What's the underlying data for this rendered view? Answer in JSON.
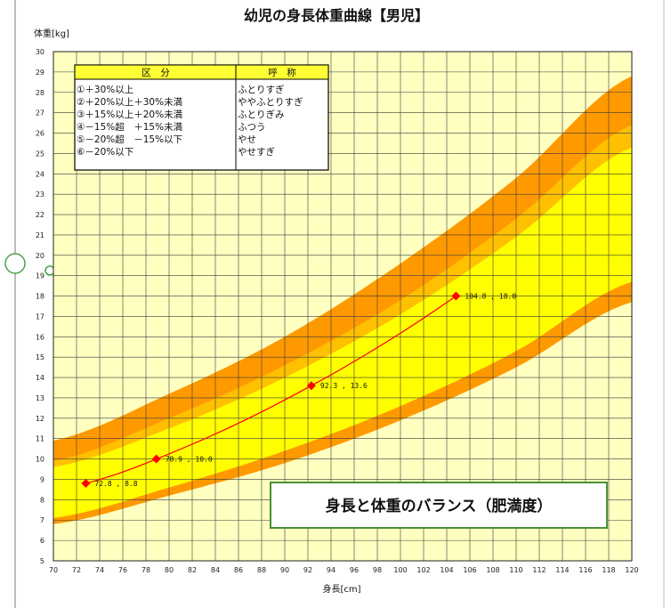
{
  "chart_data": {
    "type": "line",
    "title": "幼児の身長体重曲線【男児】",
    "xlabel": "身長[cm]",
    "ylabel": "体重[kg]",
    "xlim": [
      70,
      120
    ],
    "ylim": [
      5,
      30
    ],
    "x_ticks": [
      70,
      72,
      74,
      76,
      78,
      80,
      82,
      84,
      86,
      88,
      90,
      92,
      94,
      96,
      98,
      100,
      102,
      104,
      106,
      108,
      110,
      112,
      114,
      116,
      118,
      120
    ],
    "y_ticks": [
      5,
      6,
      7,
      8,
      9,
      10,
      11,
      12,
      13,
      14,
      15,
      16,
      17,
      18,
      19,
      20,
      21,
      22,
      23,
      24,
      25,
      26,
      27,
      28,
      29,
      30
    ],
    "grid": true,
    "series": [
      {
        "values": [
          {
            "x": 72.8,
            "y": 8.8,
            "label": "72.8 , 8.8"
          },
          {
            "x": 78.9,
            "y": 10.0,
            "label": "78.9 , 10.0"
          },
          {
            "x": 92.3,
            "y": 13.6,
            "label": "92.3 , 13.6"
          },
          {
            "x": 104.8,
            "y": 18.0,
            "label": "104.8 , 18.0"
          }
        ],
        "color": "#ff0000"
      }
    ],
    "bands": {
      "x": [
        70,
        80,
        90,
        100,
        110,
        120
      ],
      "upper30": [
        10.9,
        13.2,
        16.0,
        19.6,
        23.8,
        28.8
      ],
      "upper20": [
        9.9,
        12.0,
        14.6,
        17.8,
        21.8,
        26.4
      ],
      "upper15": [
        9.6,
        11.5,
        14.0,
        17.1,
        20.9,
        25.3
      ],
      "lower15": [
        7.1,
        8.6,
        10.4,
        12.6,
        15.3,
        18.7
      ],
      "lower20": [
        6.8,
        8.2,
        9.8,
        11.9,
        14.5,
        17.7
      ]
    },
    "colors": {
      "plot_background": "#ffffc0",
      "band_outer": "#ff9900",
      "band_mid": "#ffc000",
      "band_inner": "#ffff00"
    },
    "legend": {
      "header_left": "区　分",
      "header_right": "呼　称",
      "rows": [
        {
          "left": "①＋30%以上",
          "right": "ふとりすぎ"
        },
        {
          "left": "②＋20%以上＋30%未満",
          "right": "ややふとりすぎ"
        },
        {
          "left": "③＋15%以上＋20%未満",
          "right": "ふとりぎみ"
        },
        {
          "left": "④－15%超　＋15%未満",
          "right": "ふつう"
        },
        {
          "left": "⑤－20%超　－15%以下",
          "right": "やせ"
        },
        {
          "left": "⑥－20%以下",
          "right": "やせすぎ"
        }
      ]
    },
    "annotation": "身長と体重のバランス（肥満度）"
  }
}
